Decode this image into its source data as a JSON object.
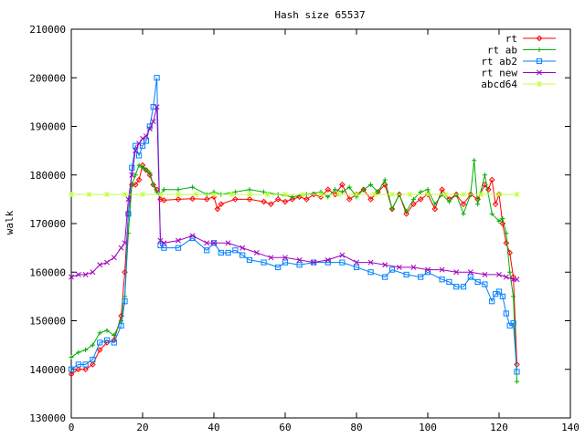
{
  "chart_data": {
    "type": "line",
    "title": "Hash size 65537",
    "xlabel": "",
    "ylabel": "walk",
    "xlim": [
      0,
      140
    ],
    "ylim": [
      130000,
      210000
    ],
    "x_ticks": [
      "0",
      "20",
      "40",
      "60",
      "80",
      "100",
      "120",
      "140"
    ],
    "y_ticks": [
      "130000",
      "140000",
      "150000",
      "160000",
      "170000",
      "180000",
      "190000",
      "200000",
      "210000"
    ],
    "legend_position": "top-right",
    "grid": false,
    "series": [
      {
        "name": "rt",
        "color": "#ff0000",
        "marker": "diamond",
        "x": [
          0,
          2,
          4,
          6,
          8,
          10,
          12,
          14,
          15,
          16,
          17,
          18,
          19,
          20,
          21,
          22,
          23,
          24,
          25,
          26,
          30,
          34,
          38,
          40,
          41,
          42,
          46,
          50,
          54,
          56,
          58,
          60,
          62,
          64,
          66,
          68,
          70,
          72,
          74,
          76,
          78,
          80,
          82,
          84,
          86,
          88,
          90,
          92,
          94,
          96,
          98,
          100,
          102,
          104,
          106,
          108,
          110,
          112,
          114,
          116,
          117,
          118,
          119,
          120,
          121,
          122,
          123,
          124,
          125
        ],
        "y": [
          139000,
          140000,
          140000,
          141000,
          144000,
          145500,
          146000,
          151000,
          160000,
          172000,
          178000,
          178000,
          179000,
          182000,
          181000,
          180000,
          178000,
          177000,
          175000,
          174800,
          175000,
          175100,
          175000,
          175500,
          173000,
          174000,
          175000,
          175000,
          174500,
          174000,
          175000,
          174500,
          175000,
          175500,
          175000,
          176000,
          175500,
          177000,
          176000,
          178000,
          175000,
          176000,
          177000,
          175000,
          176500,
          178000,
          173000,
          176000,
          172000,
          174000,
          175000,
          176000,
          173000,
          177000,
          175000,
          176000,
          174000,
          176000,
          175000,
          178000,
          177000,
          179000,
          174000,
          176000,
          170000,
          166000,
          164000,
          159000,
          141000
        ]
      },
      {
        "name": "rt ab",
        "color": "#00b000",
        "marker": "plus",
        "x": [
          0,
          2,
          4,
          6,
          8,
          10,
          12,
          14,
          15,
          16,
          17,
          18,
          19,
          20,
          21,
          22,
          23,
          24,
          25,
          26,
          30,
          34,
          38,
          40,
          42,
          46,
          50,
          54,
          58,
          62,
          66,
          70,
          72,
          74,
          76,
          78,
          80,
          82,
          84,
          86,
          88,
          90,
          92,
          94,
          96,
          98,
          100,
          102,
          104,
          106,
          108,
          110,
          112,
          113,
          114,
          116,
          118,
          120,
          121,
          122,
          123,
          124,
          125
        ],
        "y": [
          142500,
          143500,
          144000,
          145000,
          147500,
          148000,
          147000,
          150000,
          155000,
          168000,
          178000,
          180000,
          182000,
          181500,
          181000,
          180500,
          178000,
          176500,
          176000,
          177000,
          177000,
          177500,
          176000,
          176500,
          176000,
          176500,
          177000,
          176500,
          176000,
          175500,
          176000,
          176500,
          175500,
          177000,
          176500,
          177500,
          175500,
          177000,
          178000,
          176500,
          179000,
          173000,
          176000,
          172500,
          175000,
          176500,
          177000,
          174000,
          176000,
          174500,
          176000,
          172000,
          176000,
          183000,
          174000,
          180000,
          172000,
          170500,
          171000,
          168000,
          160000,
          155000,
          137500
        ]
      },
      {
        "name": "rt ab2",
        "color": "#0080ff",
        "marker": "square",
        "x": [
          0,
          2,
          4,
          6,
          8,
          10,
          12,
          14,
          15,
          16,
          17,
          18,
          19,
          20,
          21,
          22,
          23,
          24,
          25,
          26,
          30,
          34,
          38,
          40,
          42,
          44,
          46,
          48,
          50,
          54,
          58,
          60,
          64,
          68,
          72,
          76,
          80,
          84,
          88,
          90,
          94,
          98,
          100,
          104,
          106,
          108,
          110,
          112,
          114,
          116,
          118,
          119,
          120,
          121,
          122,
          123,
          124,
          125
        ],
        "y": [
          140000,
          141000,
          141000,
          142000,
          145500,
          146000,
          145500,
          149000,
          154000,
          172000,
          181500,
          186000,
          184000,
          186000,
          187000,
          190000,
          194000,
          200000,
          165500,
          165000,
          165000,
          167000,
          164500,
          166000,
          164000,
          164000,
          164500,
          163500,
          162500,
          162000,
          161000,
          162000,
          161500,
          162000,
          162000,
          162000,
          161000,
          160000,
          159000,
          160500,
          159500,
          159000,
          160000,
          158500,
          158000,
          157000,
          157000,
          159000,
          158000,
          157500,
          154000,
          155500,
          156000,
          155000,
          151500,
          149000,
          149500,
          139500
        ]
      },
      {
        "name": "rt new",
        "color": "#a000c0",
        "marker": "cross",
        "x": [
          0,
          2,
          4,
          6,
          8,
          10,
          12,
          14,
          15,
          16,
          17,
          18,
          19,
          20,
          21,
          22,
          23,
          24,
          25,
          26,
          30,
          34,
          38,
          40,
          44,
          48,
          52,
          56,
          60,
          64,
          68,
          72,
          76,
          80,
          84,
          88,
          92,
          96,
          100,
          104,
          108,
          112,
          116,
          120,
          122,
          124,
          125
        ],
        "y": [
          159000,
          159500,
          159500,
          160000,
          161500,
          162000,
          163000,
          165000,
          166000,
          175000,
          180000,
          185000,
          186500,
          187500,
          188000,
          189500,
          191000,
          194000,
          166500,
          166000,
          166500,
          167500,
          166000,
          166000,
          166000,
          165000,
          164000,
          163000,
          163000,
          162500,
          162000,
          162500,
          163500,
          162000,
          162000,
          161500,
          161000,
          161000,
          160500,
          160500,
          160000,
          160000,
          159500,
          159500,
          159000,
          158500,
          158500
        ]
      },
      {
        "name": "abcd64",
        "color": "#c0ff40",
        "marker": "star",
        "x": [
          0,
          5,
          10,
          15,
          20,
          25,
          30,
          35,
          40,
          45,
          50,
          55,
          60,
          65,
          70,
          75,
          80,
          85,
          90,
          95,
          100,
          105,
          110,
          115,
          120,
          125
        ],
        "y": [
          176000,
          176000,
          176000,
          176000,
          176000,
          176000,
          176000,
          176000,
          176000,
          176000,
          176000,
          176000,
          176000,
          176000,
          176000,
          176000,
          176000,
          176000,
          176000,
          176000,
          176000,
          176000,
          176000,
          176000,
          176000,
          176000
        ]
      }
    ]
  }
}
